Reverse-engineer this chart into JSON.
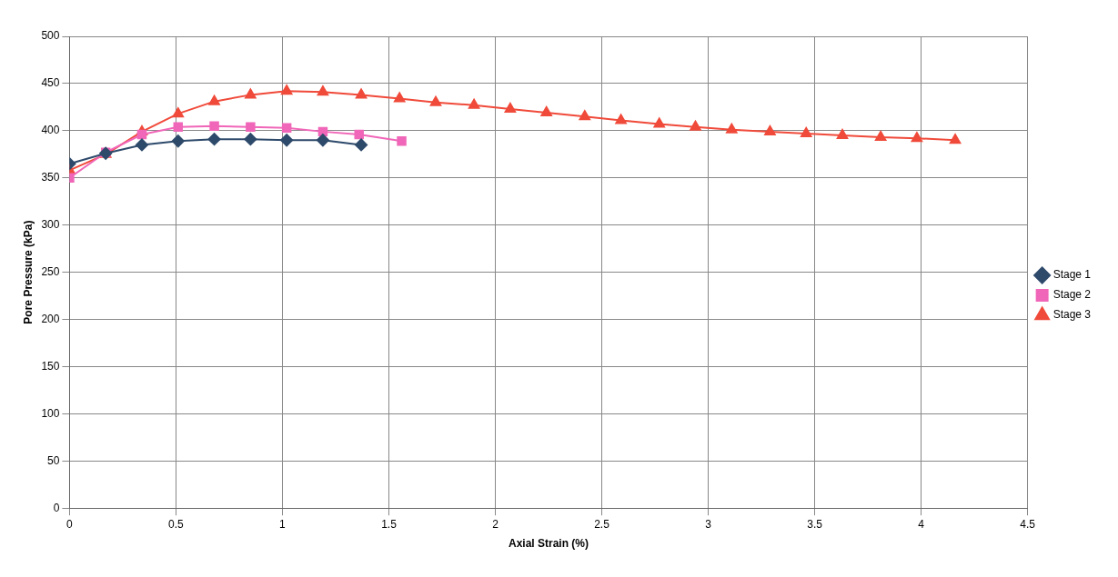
{
  "chart_data": {
    "type": "line",
    "xlabel": "Axial Strain (%)",
    "ylabel": "Pore Pressure (kPa)",
    "xlim": [
      0,
      4.5
    ],
    "xticks": [
      0,
      0.5,
      1,
      1.5,
      2,
      2.5,
      3,
      3.5,
      4,
      4.5
    ],
    "ylim": [
      0,
      500
    ],
    "yticks": [
      0,
      50,
      100,
      150,
      200,
      250,
      300,
      350,
      400,
      450,
      500
    ],
    "grid": true,
    "legend": "right",
    "series": [
      {
        "name": "Stage 1",
        "color": "#2e4a6b",
        "marker": "diamond",
        "x": [
          0,
          0.17,
          0.34,
          0.51,
          0.68,
          0.85,
          1.02,
          1.19,
          1.37
        ],
        "values": [
          365,
          376,
          385,
          389,
          391,
          391,
          390,
          390,
          385
        ]
      },
      {
        "name": "Stage 2",
        "color": "#f066b8",
        "marker": "square",
        "x": [
          0,
          0.17,
          0.34,
          0.51,
          0.68,
          0.85,
          1.02,
          1.19,
          1.36,
          1.56
        ],
        "values": [
          350,
          377,
          396,
          404,
          405,
          404,
          403,
          399,
          396,
          389
        ]
      },
      {
        "name": "Stage 3",
        "color": "#f04a3a",
        "marker": "triangle",
        "x": [
          0,
          0.17,
          0.34,
          0.51,
          0.68,
          0.85,
          1.02,
          1.19,
          1.37,
          1.55,
          1.72,
          1.9,
          2.07,
          2.24,
          2.42,
          2.59,
          2.77,
          2.94,
          3.11,
          3.29,
          3.46,
          3.63,
          3.81,
          3.98,
          4.16
        ],
        "values": [
          358,
          375,
          399,
          418,
          431,
          438,
          442,
          441,
          438,
          434,
          430,
          427,
          423,
          419,
          415,
          411,
          407,
          404,
          401,
          399,
          397,
          395,
          393,
          392,
          390
        ]
      }
    ]
  }
}
